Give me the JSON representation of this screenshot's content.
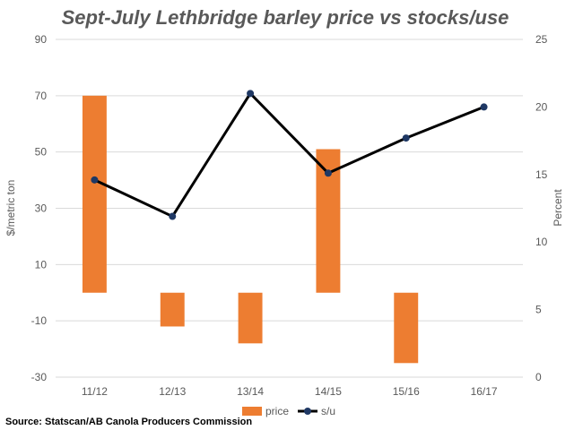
{
  "chart_data": {
    "type": "bar",
    "title": "Sept-July Lethbridge barley price vs stocks/use",
    "categories": [
      "11/12",
      "12/13",
      "13/14",
      "14/15",
      "15/16",
      "16/17"
    ],
    "series": [
      {
        "name": "price",
        "type": "bar",
        "axis": "left",
        "color": "#ED7D31",
        "values": [
          70,
          -12,
          -18,
          51,
          -25,
          null
        ]
      },
      {
        "name": "s/u",
        "type": "line",
        "axis": "right",
        "color": "#000000",
        "marker_color": "#1F3864",
        "values": [
          14.6,
          11.9,
          21.0,
          15.1,
          17.7,
          20.0
        ]
      }
    ],
    "ylabel": "$/metric ton",
    "y2label": "Percent",
    "ylim": [
      -30,
      90
    ],
    "y2lim": [
      0,
      25
    ],
    "yticks": [
      "90",
      "70",
      "50",
      "30",
      "10",
      "-10",
      "-30"
    ],
    "y2ticks": [
      "25",
      "20",
      "15",
      "10",
      "5",
      "0"
    ],
    "grid": true,
    "legend_position": "bottom",
    "source": "Source: Statscan/AB Canola Producers Commission"
  }
}
